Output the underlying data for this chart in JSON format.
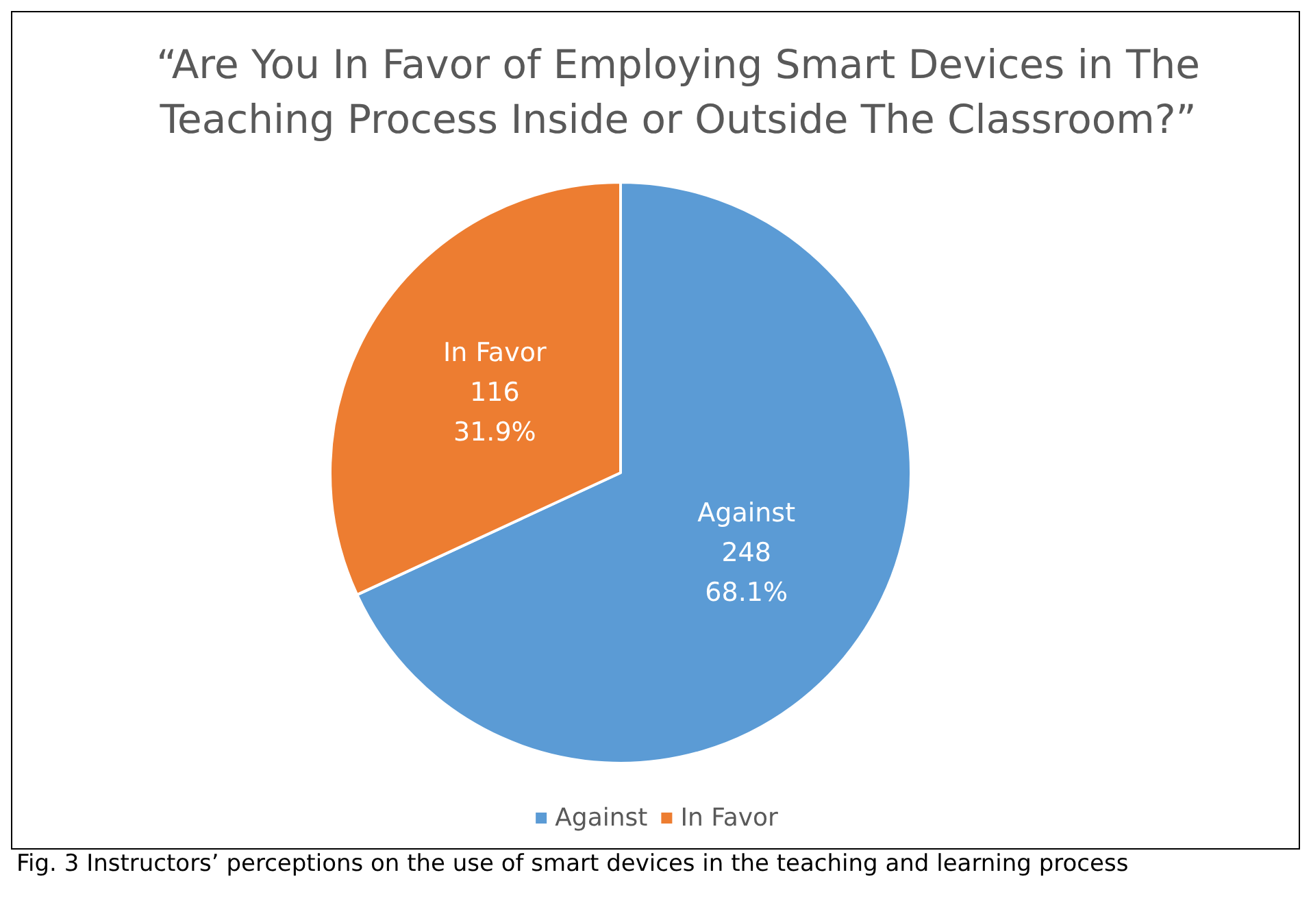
{
  "chart_data": {
    "type": "pie",
    "title": "“Are You In Favor of Employing Smart Devices in The\nTeaching Process Inside or Outside The Classroom?”",
    "categories": [
      "Against",
      "In Favor"
    ],
    "values": [
      68.1,
      31.9
    ],
    "colors": [
      "#5b9bd5",
      "#ed7d31"
    ],
    "value_labels": [
      "248\n68.1%",
      "116\n31.9%"
    ],
    "legend": "bottom",
    "annotations": [
      "Fig. 3 Instructors’ perceptions on the use of smart devices in the teaching and learning process"
    ]
  }
}
